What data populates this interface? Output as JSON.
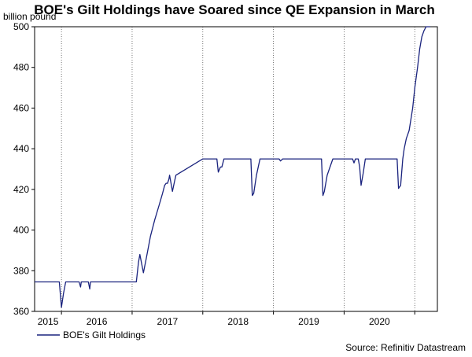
{
  "chart_data": {
    "type": "line",
    "title": "BOE's Gilt Holdings have Soared since QE Expansion in March",
    "ylabel": "billion pound",
    "xlabel": "",
    "ylim": [
      360,
      500
    ],
    "yticks": [
      360,
      380,
      400,
      420,
      440,
      460,
      480,
      500
    ],
    "xlim": [
      2014.62,
      2020.32
    ],
    "xticks": [
      {
        "label": "2015",
        "x": 2015.0
      },
      {
        "label": "2016",
        "x": 2016.0
      },
      {
        "label": "2017",
        "x": 2017.0
      },
      {
        "label": "2018",
        "x": 2018.0
      },
      {
        "label": "2019",
        "x": 2019.0
      },
      {
        "label": "2020",
        "x": 2020.0
      }
    ],
    "grid": "vertical-dotted",
    "legend": {
      "position": "bottom-left",
      "label": "BOE's Gilt Holdings"
    },
    "source": "Source: Refinitiv Datastream",
    "line_color": "#1a237e",
    "series": [
      {
        "name": "BOE's Gilt Holdings",
        "x": [
          2014.62,
          2014.97,
          2015.0,
          2015.03,
          2015.06,
          2015.09,
          2015.11,
          2015.14,
          2015.25,
          2015.27,
          2015.28,
          2015.32,
          2015.38,
          2015.4,
          2015.41,
          2015.45,
          2015.47,
          2015.5,
          2015.9,
          2016.0,
          2016.06,
          2016.09,
          2016.11,
          2016.16,
          2016.2,
          2016.26,
          2016.32,
          2016.38,
          2016.43,
          2016.46,
          2016.48,
          2016.5,
          2016.52,
          2016.53,
          2016.57,
          2016.6,
          2016.62,
          2017.0,
          2017.17,
          2017.2,
          2017.22,
          2017.25,
          2017.27,
          2017.3,
          2017.5,
          2017.68,
          2017.7,
          2017.72,
          2017.76,
          2017.81,
          2017.86,
          2017.9,
          2017.95,
          2018.0,
          2018.08,
          2018.1,
          2018.13,
          2018.2,
          2018.68,
          2018.7,
          2018.72,
          2018.76,
          2018.8,
          2018.84,
          2018.88,
          2018.91,
          2019.1,
          2019.12,
          2019.14,
          2019.16,
          2019.2,
          2019.22,
          2019.24,
          2019.27,
          2019.3,
          2019.34,
          2019.4,
          2019.7,
          2019.75,
          2019.77,
          2019.8,
          2019.83,
          2019.85,
          2019.88,
          2019.92,
          2019.97,
          2020.0,
          2020.04,
          2020.07,
          2020.1,
          2020.13,
          2020.16,
          2020.2,
          2020.22
        ],
        "values": [
          374.5,
          374.5,
          362,
          369,
          374.5,
          374.5,
          374.5,
          374.5,
          374.5,
          372,
          374.5,
          374.5,
          374.5,
          371,
          374.5,
          374.5,
          374.5,
          374.5,
          374.5,
          374.5,
          374.5,
          384,
          388,
          379,
          386,
          397,
          405,
          412,
          418,
          422,
          423,
          423,
          425,
          427,
          419,
          424,
          427,
          435,
          435,
          435,
          428.5,
          431,
          431,
          435,
          435,
          435,
          417,
          418,
          427,
          435,
          435,
          435,
          435,
          435,
          435,
          434,
          435,
          435,
          435,
          417,
          419,
          427,
          431,
          435,
          435,
          435,
          435,
          435,
          433,
          435,
          435,
          431,
          422,
          428,
          435,
          435,
          435,
          435,
          435,
          420.5,
          422,
          435,
          440,
          445,
          449,
          460,
          470,
          480,
          489,
          495,
          498,
          500,
          500,
          500
        ]
      }
    ]
  }
}
